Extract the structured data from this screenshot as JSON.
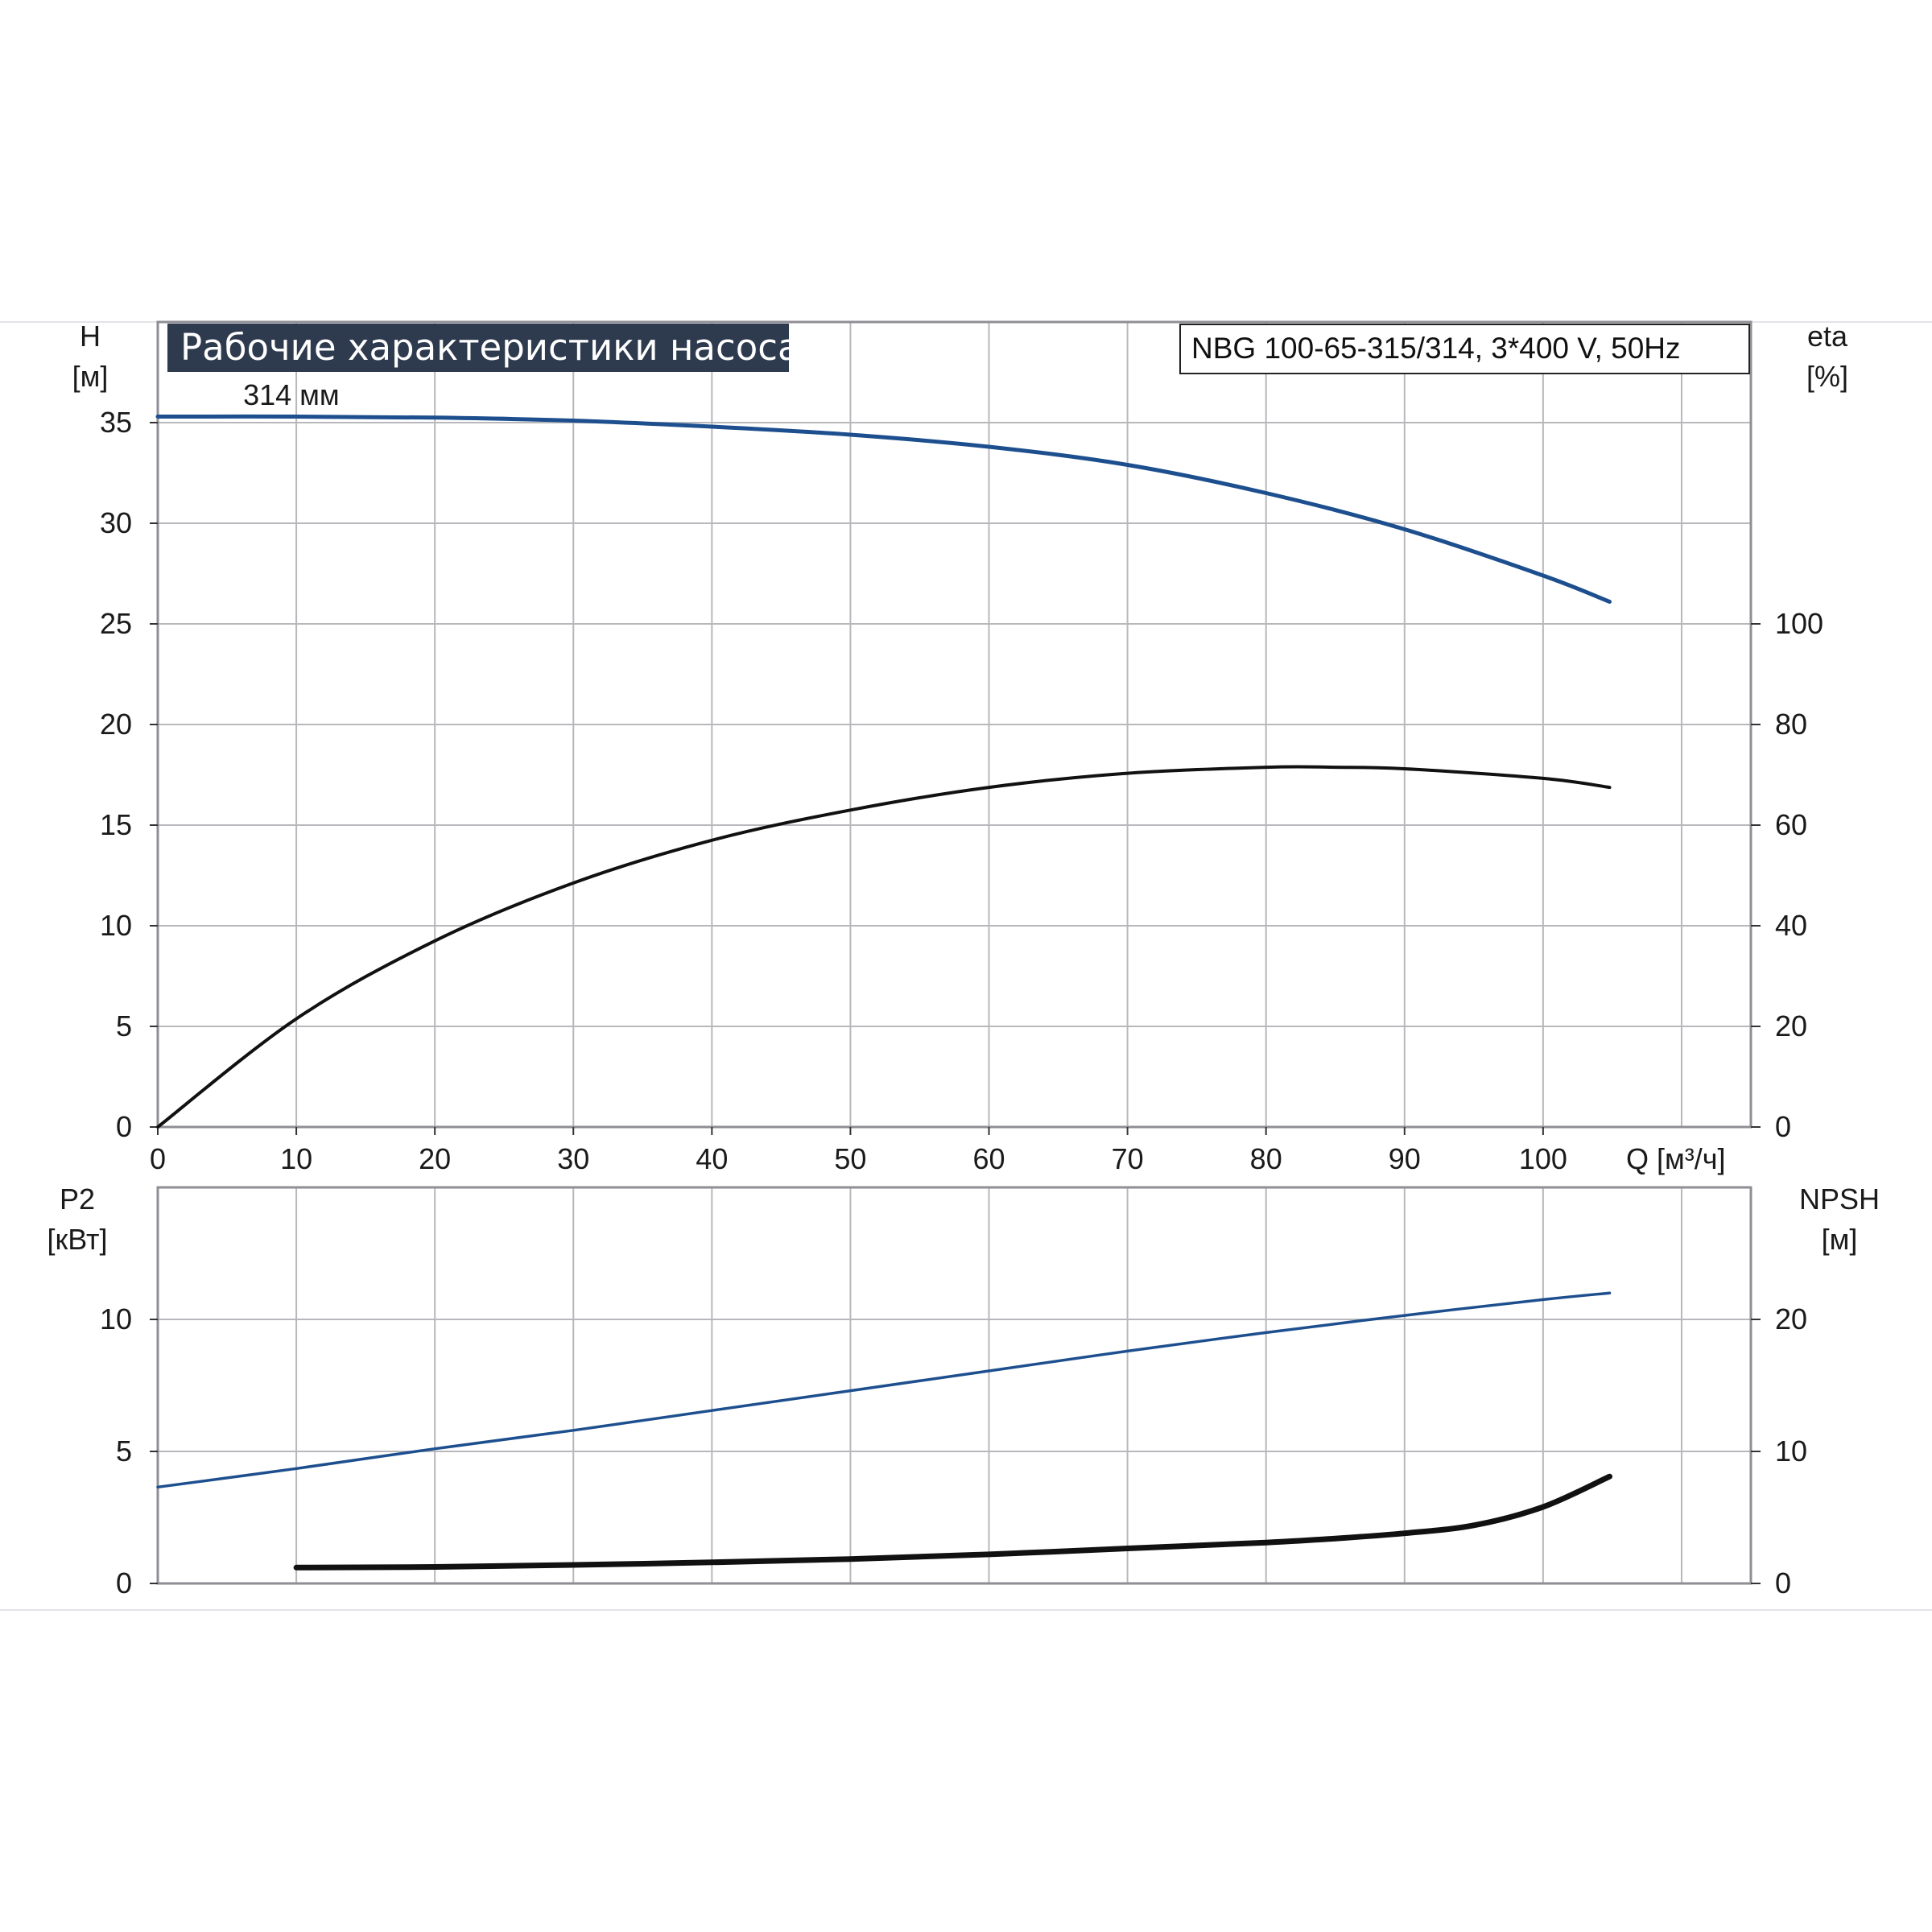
{
  "title": "Рабочие характеристики насоса",
  "model": "NBG 100-65-315/314, 3*400 V, 50Hz",
  "colors": {
    "head": "#1d4f8f",
    "eta": "#111111",
    "p2": "#1d4f8f",
    "npsh": "#111111",
    "grid": "#b8b8bc",
    "title_bg": "#2e3a4e"
  },
  "chart_data": [
    {
      "type": "line",
      "name": "upper",
      "title": "Рабочие характеристики насоса",
      "subtitle": "NBG 100-65-315/314, 3*400 V, 50Hz",
      "xlabel": "Q [м³/ч]",
      "xlim": [
        0,
        115
      ],
      "xticks": [
        0,
        10,
        20,
        30,
        40,
        50,
        60,
        70,
        80,
        90,
        100
      ],
      "ylabel": [
        "H",
        "[м]"
      ],
      "ylim": [
        0,
        40
      ],
      "yticks": [
        0,
        5,
        10,
        15,
        20,
        25,
        30,
        35
      ],
      "y2label": [
        "eta",
        "[%]"
      ],
      "y2lim": [
        0,
        160
      ],
      "y2ticks": [
        0,
        20,
        40,
        60,
        80,
        100
      ],
      "grid": true,
      "annotations": [
        {
          "text": "314 мм",
          "x": 10,
          "y": 36.2
        }
      ],
      "series": [
        {
          "key": "head",
          "axis": "left",
          "label": "314 мм",
          "x": [
            0,
            10,
            20,
            30,
            40,
            50,
            60,
            70,
            80,
            90,
            100,
            104.8
          ],
          "y": [
            35.3,
            35.3,
            35.25,
            35.1,
            34.8,
            34.4,
            33.8,
            32.9,
            31.5,
            29.7,
            27.4,
            26.1
          ]
        },
        {
          "key": "eta",
          "axis": "right",
          "x": [
            0,
            10,
            20,
            30,
            40,
            50,
            60,
            70,
            80,
            85,
            90,
            100,
            104.8
          ],
          "y": [
            0,
            21.5,
            37,
            48.5,
            57,
            63,
            67.5,
            70.3,
            71.5,
            71.5,
            71.2,
            69.3,
            67.5
          ]
        }
      ]
    },
    {
      "type": "line",
      "name": "lower",
      "xlim": [
        0,
        115
      ],
      "xticks": [
        0,
        10,
        20,
        30,
        40,
        50,
        60,
        70,
        80,
        90,
        100
      ],
      "ylabel": [
        "P2",
        "[кВт]"
      ],
      "ylim": [
        0,
        15
      ],
      "yticks": [
        0,
        5,
        10
      ],
      "y2label": [
        "NPSH",
        "[м]"
      ],
      "y2lim": [
        0,
        30
      ],
      "y2ticks": [
        0,
        10,
        20
      ],
      "grid": true,
      "series": [
        {
          "key": "p2",
          "axis": "left",
          "x": [
            0,
            10,
            20,
            30,
            40,
            50,
            60,
            70,
            80,
            90,
            100,
            104.8
          ],
          "y": [
            3.65,
            4.35,
            5.1,
            5.8,
            6.55,
            7.3,
            8.05,
            8.8,
            9.5,
            10.15,
            10.75,
            11.0
          ]
        },
        {
          "key": "npsh",
          "axis": "right",
          "x": [
            10,
            20,
            30,
            40,
            50,
            60,
            70,
            80,
            85,
            90,
            95,
            100,
            104.8
          ],
          "y": [
            1.2,
            1.25,
            1.4,
            1.6,
            1.85,
            2.2,
            2.65,
            3.1,
            3.4,
            3.8,
            4.4,
            5.8,
            8.1
          ]
        }
      ]
    }
  ]
}
